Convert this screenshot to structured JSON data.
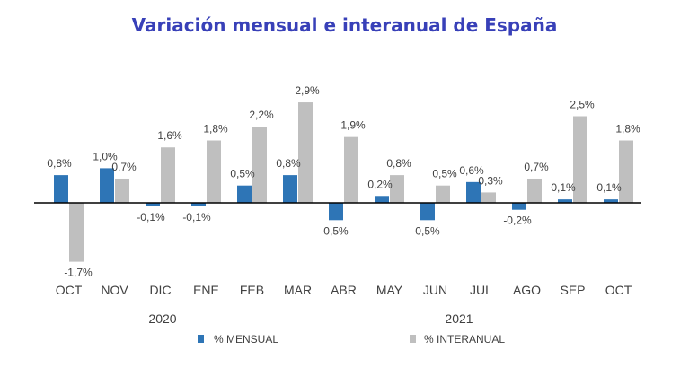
{
  "title": "Variación mensual e interanual de España",
  "colors": {
    "title": "#3840b8",
    "mensual": "#2e75b6",
    "interanual": "#bfbfbf",
    "axis": "#000000",
    "text": "#404040"
  },
  "chart_data": {
    "type": "bar",
    "title": "Variación mensual e interanual de España",
    "categories": [
      "OCT",
      "NOV",
      "DIC",
      "ENE",
      "FEB",
      "MAR",
      "ABR",
      "MAY",
      "JUN",
      "JUL",
      "AGO",
      "SEP",
      "OCT"
    ],
    "year_labels": [
      "2020",
      "2021"
    ],
    "series": [
      {
        "name": "% MENSUAL",
        "values": [
          0.8,
          1.0,
          -0.1,
          -0.1,
          0.5,
          0.8,
          -0.5,
          0.2,
          -0.5,
          0.6,
          -0.2,
          0.1,
          0.1
        ],
        "labels": [
          "0,8%",
          "1,0%",
          "-0,1%",
          "-0,1%",
          "0,5%",
          "0,8%",
          "-0,5%",
          "0,2%",
          "-0,5%",
          "0,6%",
          "-0,2%",
          "0,1%",
          "0,1%"
        ]
      },
      {
        "name": "% INTERANUAL",
        "values": [
          -1.7,
          0.7,
          1.6,
          1.8,
          2.2,
          2.9,
          1.9,
          0.8,
          0.5,
          0.3,
          0.7,
          2.5,
          1.8
        ],
        "labels": [
          "-1,7%",
          "0,7%",
          "1,6%",
          "1,8%",
          "2,2%",
          "2,9%",
          "1,9%",
          "0,8%",
          "0,5%",
          "0,3%",
          "0,7%",
          "2,5%",
          "1,8%"
        ]
      }
    ],
    "ylim": [
      -1.7,
      2.9
    ],
    "grid": false,
    "legend": "bottom"
  }
}
